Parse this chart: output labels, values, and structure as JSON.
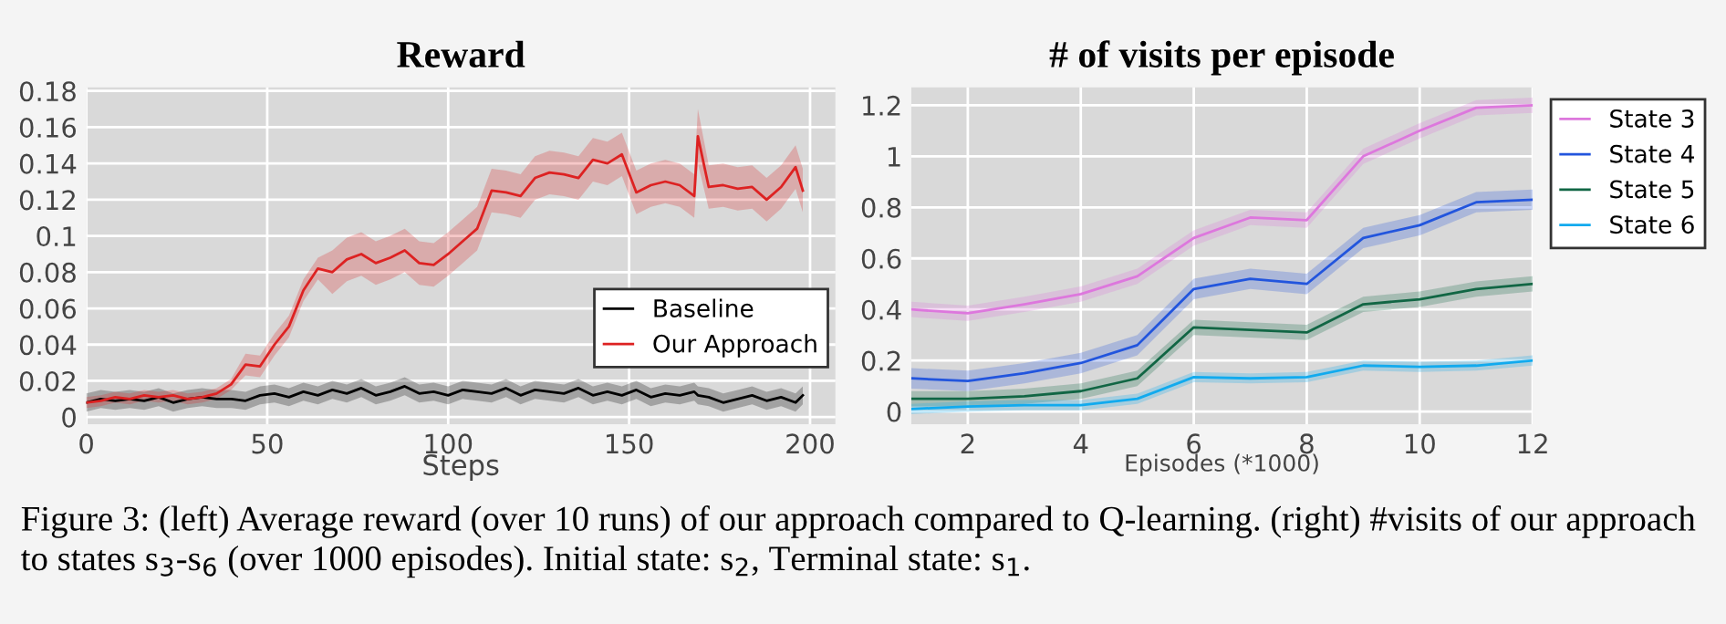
{
  "chart_data": [
    {
      "type": "line",
      "title": "Reward",
      "xlabel": "Steps",
      "xlim": [
        0,
        207
      ],
      "ylim": [
        -0.004,
        0.182
      ],
      "xticks": [
        0,
        50,
        100,
        150,
        200
      ],
      "yticks": [
        0,
        0.02,
        0.04,
        0.06,
        0.08,
        0.1,
        0.12,
        0.14,
        0.16,
        0.18
      ],
      "grid": true,
      "legend": "bottom right",
      "x": [
        0,
        4,
        8,
        12,
        16,
        20,
        24,
        28,
        32,
        36,
        40,
        44,
        48,
        52,
        56,
        60,
        64,
        68,
        72,
        76,
        80,
        84,
        88,
        92,
        96,
        100,
        104,
        108,
        112,
        116,
        120,
        124,
        128,
        132,
        136,
        140,
        144,
        148,
        152,
        156,
        160,
        164,
        168,
        169,
        172,
        176,
        180,
        184,
        188,
        192,
        196,
        198
      ],
      "series": [
        {
          "name": "Baseline",
          "color": "#000000",
          "values": [
            0.008,
            0.01,
            0.009,
            0.01,
            0.009,
            0.011,
            0.008,
            0.01,
            0.011,
            0.01,
            0.01,
            0.009,
            0.012,
            0.013,
            0.011,
            0.014,
            0.012,
            0.015,
            0.013,
            0.016,
            0.012,
            0.014,
            0.017,
            0.013,
            0.014,
            0.012,
            0.015,
            0.014,
            0.013,
            0.016,
            0.012,
            0.015,
            0.014,
            0.013,
            0.016,
            0.012,
            0.014,
            0.012,
            0.015,
            0.011,
            0.013,
            0.012,
            0.014,
            0.012,
            0.011,
            0.008,
            0.01,
            0.012,
            0.009,
            0.011,
            0.008,
            0.012
          ],
          "lower": [
            0.003,
            0.005,
            0.004,
            0.005,
            0.004,
            0.006,
            0.003,
            0.005,
            0.006,
            0.005,
            0.005,
            0.004,
            0.007,
            0.008,
            0.006,
            0.009,
            0.007,
            0.01,
            0.008,
            0.011,
            0.007,
            0.009,
            0.012,
            0.008,
            0.009,
            0.007,
            0.01,
            0.009,
            0.008,
            0.011,
            0.007,
            0.01,
            0.009,
            0.008,
            0.011,
            0.007,
            0.009,
            0.007,
            0.01,
            0.006,
            0.008,
            0.007,
            0.009,
            0.007,
            0.006,
            0.003,
            0.005,
            0.007,
            0.004,
            0.006,
            0.003,
            0.007
          ],
          "upper": [
            0.013,
            0.015,
            0.014,
            0.015,
            0.014,
            0.016,
            0.013,
            0.015,
            0.016,
            0.015,
            0.015,
            0.014,
            0.017,
            0.018,
            0.016,
            0.019,
            0.017,
            0.02,
            0.018,
            0.021,
            0.017,
            0.019,
            0.022,
            0.018,
            0.019,
            0.017,
            0.02,
            0.019,
            0.018,
            0.021,
            0.017,
            0.02,
            0.019,
            0.018,
            0.021,
            0.017,
            0.019,
            0.017,
            0.02,
            0.016,
            0.018,
            0.017,
            0.019,
            0.017,
            0.016,
            0.013,
            0.015,
            0.017,
            0.014,
            0.016,
            0.013,
            0.017
          ]
        },
        {
          "name": "Our Approach",
          "color": "#dd2222",
          "values": [
            0.008,
            0.009,
            0.011,
            0.01,
            0.012,
            0.011,
            0.012,
            0.01,
            0.011,
            0.013,
            0.018,
            0.029,
            0.028,
            0.04,
            0.05,
            0.07,
            0.082,
            0.08,
            0.087,
            0.09,
            0.085,
            0.088,
            0.092,
            0.085,
            0.084,
            0.09,
            0.097,
            0.104,
            0.125,
            0.124,
            0.122,
            0.132,
            0.135,
            0.134,
            0.132,
            0.142,
            0.14,
            0.145,
            0.124,
            0.128,
            0.13,
            0.128,
            0.122,
            0.155,
            0.127,
            0.128,
            0.126,
            0.127,
            0.12,
            0.127,
            0.138,
            0.125
          ],
          "lower": [
            0.005,
            0.006,
            0.008,
            0.007,
            0.009,
            0.008,
            0.009,
            0.007,
            0.008,
            0.01,
            0.015,
            0.023,
            0.022,
            0.034,
            0.044,
            0.064,
            0.076,
            0.068,
            0.075,
            0.078,
            0.073,
            0.076,
            0.08,
            0.073,
            0.072,
            0.078,
            0.085,
            0.092,
            0.113,
            0.112,
            0.11,
            0.12,
            0.123,
            0.122,
            0.12,
            0.13,
            0.128,
            0.133,
            0.112,
            0.116,
            0.118,
            0.116,
            0.11,
            0.14,
            0.115,
            0.116,
            0.114,
            0.115,
            0.108,
            0.115,
            0.126,
            0.113
          ],
          "upper": [
            0.011,
            0.012,
            0.014,
            0.013,
            0.015,
            0.014,
            0.015,
            0.013,
            0.014,
            0.016,
            0.021,
            0.035,
            0.034,
            0.046,
            0.056,
            0.076,
            0.088,
            0.092,
            0.099,
            0.102,
            0.097,
            0.1,
            0.104,
            0.097,
            0.096,
            0.102,
            0.109,
            0.116,
            0.137,
            0.136,
            0.134,
            0.144,
            0.147,
            0.146,
            0.144,
            0.154,
            0.152,
            0.157,
            0.136,
            0.14,
            0.142,
            0.14,
            0.134,
            0.17,
            0.139,
            0.14,
            0.138,
            0.139,
            0.132,
            0.139,
            0.15,
            0.137
          ]
        }
      ],
      "annotations": [
        "Figure 3: (left) Average reward (over 10 runs) of our approach compared to Q-learning. (right) #visits of our approach to states s$_{3}$-s$_{6}$ (over 1000 episodes). Initial state: s$_{2}$, Terminal state: s$_{1}$."
      ]
    },
    {
      "type": "line",
      "title": "# of visits per episode",
      "xlabel": "Episodes (*1000)",
      "xlim": [
        1,
        12
      ],
      "ylim": [
        -0.05,
        1.27
      ],
      "xticks": [
        2,
        4,
        6,
        8,
        10,
        12
      ],
      "yticks": [
        0,
        0.2,
        0.4,
        0.6,
        0.8,
        1,
        1.2
      ],
      "grid": true,
      "legend": "right",
      "x": [
        1,
        2,
        3,
        4,
        5,
        6,
        7,
        8,
        9,
        10,
        11,
        12
      ],
      "series": [
        {
          "name": "State 3",
          "color": "#dd77dd",
          "values": [
            0.4,
            0.385,
            0.42,
            0.46,
            0.53,
            0.68,
            0.76,
            0.75,
            1.0,
            1.1,
            1.19,
            1.2
          ],
          "lower": [
            0.37,
            0.355,
            0.39,
            0.43,
            0.5,
            0.65,
            0.73,
            0.72,
            0.97,
            1.07,
            1.16,
            1.17
          ],
          "upper": [
            0.43,
            0.415,
            0.45,
            0.49,
            0.56,
            0.71,
            0.79,
            0.78,
            1.03,
            1.13,
            1.22,
            1.23
          ]
        },
        {
          "name": "State 4",
          "color": "#2255dd",
          "values": [
            0.13,
            0.12,
            0.15,
            0.19,
            0.26,
            0.48,
            0.52,
            0.5,
            0.68,
            0.73,
            0.82,
            0.83
          ],
          "lower": [
            0.09,
            0.08,
            0.11,
            0.15,
            0.22,
            0.44,
            0.48,
            0.46,
            0.64,
            0.69,
            0.78,
            0.79
          ],
          "upper": [
            0.17,
            0.16,
            0.19,
            0.23,
            0.3,
            0.52,
            0.56,
            0.54,
            0.72,
            0.77,
            0.86,
            0.87
          ]
        },
        {
          "name": "State 5",
          "color": "#116644",
          "values": [
            0.05,
            0.05,
            0.06,
            0.08,
            0.13,
            0.33,
            0.32,
            0.31,
            0.42,
            0.44,
            0.48,
            0.5
          ],
          "lower": [
            0.02,
            0.02,
            0.03,
            0.05,
            0.1,
            0.3,
            0.29,
            0.28,
            0.39,
            0.41,
            0.45,
            0.47
          ],
          "upper": [
            0.08,
            0.08,
            0.09,
            0.11,
            0.16,
            0.36,
            0.35,
            0.34,
            0.45,
            0.47,
            0.51,
            0.53
          ]
        },
        {
          "name": "State 6",
          "color": "#11aaee",
          "values": [
            0.01,
            0.02,
            0.025,
            0.025,
            0.05,
            0.135,
            0.13,
            0.135,
            0.18,
            0.175,
            0.18,
            0.2
          ],
          "lower": [
            -0.01,
            0,
            0.005,
            0.005,
            0.03,
            0.115,
            0.11,
            0.115,
            0.16,
            0.155,
            0.16,
            0.18
          ],
          "upper": [
            0.03,
            0.04,
            0.045,
            0.045,
            0.07,
            0.155,
            0.15,
            0.155,
            0.2,
            0.195,
            0.2,
            0.22
          ]
        }
      ]
    }
  ]
}
